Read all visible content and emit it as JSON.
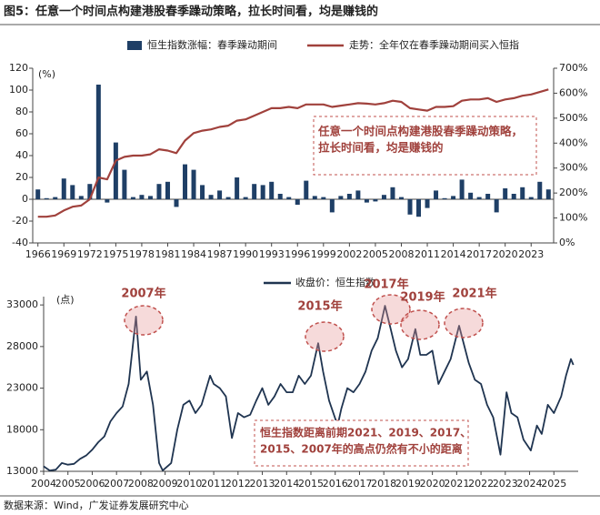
{
  "title": "图5：任意一个时间点构建港股春季躁动策略，拉长时间看，均是赚钱的",
  "source": "数据来源：Wind，广发证券发展研究中心",
  "chart_data": [
    {
      "type": "combo",
      "ylabel": "(%)",
      "x": [
        1966,
        1967,
        1968,
        1969,
        1970,
        1971,
        1972,
        1973,
        1974,
        1975,
        1976,
        1977,
        1978,
        1979,
        1980,
        1981,
        1982,
        1983,
        1984,
        1985,
        1986,
        1987,
        1988,
        1989,
        1990,
        1991,
        1992,
        1993,
        1994,
        1995,
        1996,
        1997,
        1998,
        1999,
        2000,
        2001,
        2002,
        2003,
        2004,
        2005,
        2006,
        2007,
        2008,
        2009,
        2010,
        2011,
        2012,
        2013,
        2014,
        2015,
        2016,
        2017,
        2018,
        2019,
        2020,
        2021,
        2022,
        2023,
        2024,
        2025
      ],
      "xlim": [
        1965.4,
        2025.6
      ],
      "xticks": [
        1966,
        1969,
        1972,
        1975,
        1978,
        1981,
        1984,
        1987,
        1990,
        1993,
        1996,
        1999,
        2002,
        2005,
        2008,
        2011,
        2014,
        2017,
        2020,
        2023
      ],
      "ylim": [
        -40,
        120
      ],
      "yticks": [
        -40,
        -20,
        0,
        20,
        40,
        60,
        80,
        100,
        120
      ],
      "y2lim": [
        0,
        700
      ],
      "y2ticks": [
        {
          "value": 0,
          "label": "0%"
        },
        {
          "value": 100,
          "label": "100%"
        },
        {
          "value": 200,
          "label": "200%"
        },
        {
          "value": 300,
          "label": "300%"
        },
        {
          "value": 400,
          "label": "400%"
        },
        {
          "value": 500,
          "label": "500%"
        },
        {
          "value": 600,
          "label": "600%"
        },
        {
          "value": 700,
          "label": "700%"
        }
      ],
      "series": [
        {
          "name": "恒生指数涨幅：春季躁动期间",
          "type": "bar",
          "color": "#1f3f66",
          "values": [
            9,
            1,
            2,
            19,
            13,
            3,
            14,
            105,
            -3,
            52,
            27,
            2,
            4,
            3,
            14,
            16,
            -7,
            32,
            27,
            13,
            4,
            8,
            2,
            20,
            2,
            14,
            13,
            16,
            5,
            2,
            -5,
            17,
            3,
            2,
            -12,
            3,
            5,
            8,
            -3,
            -2,
            4,
            11,
            2,
            -14,
            -16,
            -8,
            8,
            1,
            3,
            18,
            6,
            2,
            5,
            -12,
            10,
            5,
            11,
            2,
            16,
            9
          ]
        },
        {
          "name": "走势：全年仅在春季躁动期间买入恒指",
          "type": "line",
          "axis": "y2",
          "color": "#a0413c",
          "values": [
            105,
            105,
            110,
            130,
            145,
            150,
            175,
            262,
            255,
            330,
            345,
            350,
            350,
            355,
            375,
            370,
            360,
            410,
            440,
            450,
            455,
            465,
            470,
            490,
            495,
            510,
            525,
            540,
            540,
            545,
            540,
            555,
            555,
            555,
            545,
            550,
            555,
            560,
            558,
            555,
            560,
            570,
            565,
            540,
            535,
            530,
            545,
            545,
            548,
            570,
            575,
            575,
            580,
            565,
            575,
            580,
            590,
            595,
            605,
            615
          ]
        }
      ],
      "annotation": [
        "任意一个时间点构建港股春季躁动策略，",
        "拉长时间看，均是赚钱的"
      ]
    },
    {
      "type": "line",
      "ylabel": "(点)",
      "xlim": [
        2004,
        2026
      ],
      "xticks": [
        2004,
        2005,
        2006,
        2007,
        2008,
        2009,
        2010,
        2011,
        2012,
        2013,
        2014,
        2015,
        2016,
        2017,
        2018,
        2019,
        2020,
        2021,
        2022,
        2023,
        2024,
        2025
      ],
      "ylim": [
        13000,
        34000
      ],
      "yticks": [
        13000,
        18000,
        23000,
        28000,
        33000
      ],
      "x": [
        2004,
        2004.25,
        2004.5,
        2004.75,
        2005,
        2005.25,
        2005.5,
        2005.75,
        2006,
        2006.25,
        2006.5,
        2006.75,
        2007,
        2007.25,
        2007.5,
        2007.8,
        2008,
        2008.25,
        2008.5,
        2008.75,
        2008.9,
        2009.25,
        2009.5,
        2009.75,
        2010,
        2010.25,
        2010.5,
        2010.85,
        2011,
        2011.25,
        2011.5,
        2011.75,
        2012,
        2012.25,
        2012.5,
        2012.75,
        2013,
        2013.25,
        2013.5,
        2013.75,
        2014,
        2014.25,
        2014.5,
        2014.75,
        2015,
        2015.3,
        2015.5,
        2015.75,
        2016.1,
        2016.25,
        2016.5,
        2016.75,
        2017,
        2017.25,
        2017.5,
        2017.75,
        2018.05,
        2018.25,
        2018.5,
        2018.75,
        2019,
        2019.3,
        2019.5,
        2019.75,
        2020,
        2020.25,
        2020.5,
        2020.75,
        2021.1,
        2021.25,
        2021.5,
        2021.75,
        2022,
        2022.25,
        2022.5,
        2022.8,
        2023.05,
        2023.25,
        2023.5,
        2023.75,
        2024.05,
        2024.3,
        2024.5,
        2024.75,
        2025,
        2025.3,
        2025.5,
        2025.7,
        2025.8
      ],
      "series": [
        {
          "name": "收盘价：恒生指数",
          "color": "#1f3450",
          "values": [
            13600,
            13100,
            13200,
            14000,
            13800,
            13900,
            14500,
            14900,
            15600,
            16500,
            17200,
            19000,
            20000,
            20800,
            23500,
            31600,
            24000,
            25000,
            21000,
            14000,
            13100,
            14000,
            18000,
            21000,
            21500,
            20000,
            21000,
            24500,
            23500,
            23000,
            22000,
            17000,
            20000,
            19500,
            19800,
            21500,
            23000,
            21000,
            22000,
            23500,
            22500,
            22500,
            24500,
            23500,
            24500,
            28400,
            25000,
            21500,
            18500,
            20500,
            23000,
            22500,
            23500,
            25000,
            27500,
            29000,
            32900,
            30500,
            27500,
            25500,
            26500,
            30100,
            27000,
            27000,
            27500,
            23500,
            25000,
            26500,
            30500,
            28800,
            26000,
            24000,
            23500,
            21000,
            19500,
            15000,
            22500,
            20000,
            19500,
            16800,
            15500,
            18500,
            17500,
            21000,
            20000,
            22000,
            24500,
            26500,
            25800
          ]
        }
      ],
      "highlights": [
        "2007年",
        "2015年",
        "2017年",
        "2019年",
        "2021年"
      ],
      "annotation": [
        "恒生指数距离前期2021、2019、2017、",
        "2015、2007年的高点仍然有不小的距离"
      ]
    }
  ]
}
